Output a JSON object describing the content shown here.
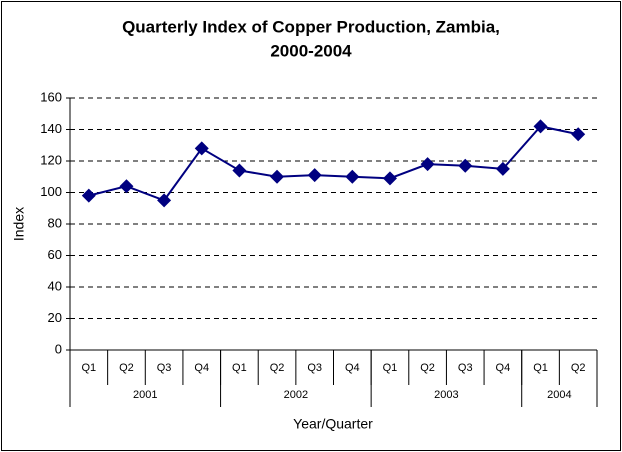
{
  "chart_data": {
    "type": "line",
    "title": [
      "Quarterly Index of Copper Production, Zambia,",
      "2000-2004"
    ],
    "y_label": "Index",
    "x_label": "Year/Quarter",
    "categories": [
      "Q1",
      "Q2",
      "Q3",
      "Q4",
      "Q1",
      "Q2",
      "Q3",
      "Q4",
      "Q1",
      "Q2",
      "Q3",
      "Q4",
      "Q1",
      "Q2"
    ],
    "category_groups": [
      {
        "label": "2001",
        "count": 4
      },
      {
        "label": "2002",
        "count": 4
      },
      {
        "label": "2003",
        "count": 4
      },
      {
        "label": "2004",
        "count": 2
      }
    ],
    "series": [
      {
        "name": "Index",
        "color": "#000080",
        "values": [
          98,
          104,
          95,
          128,
          114,
          110,
          111,
          110,
          109,
          118,
          117,
          115,
          142,
          137
        ]
      }
    ],
    "ylim": [
      0,
      160
    ],
    "yticks": [
      0,
      20,
      40,
      60,
      80,
      100,
      120,
      140,
      160
    ],
    "grid": true
  }
}
